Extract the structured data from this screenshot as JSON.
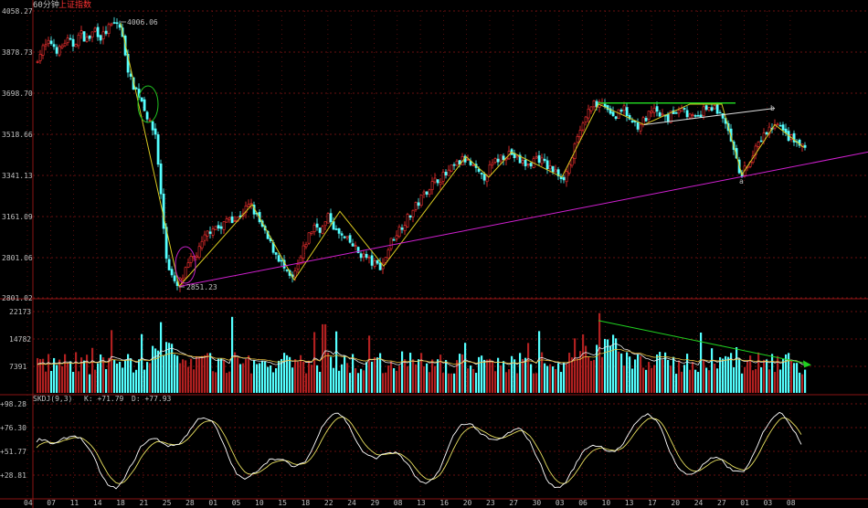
{
  "header": {
    "period": "60分钟",
    "index_name": "上证指数"
  },
  "colors": {
    "up": "#ff3232",
    "down": "#54ffff",
    "grid": "#8a1414",
    "bg": "#000000",
    "zigzag": "#d8c820",
    "support": "#d020d0",
    "channel": "#e0e0e0",
    "top_line": "#20d020",
    "volume_trend": "#20d020",
    "kdj_k": "#ffffff",
    "kdj_d": "#e8e060"
  },
  "chart_data": {
    "type": "candlestick",
    "price_axis": {
      "ticks": [
        "4058.27",
        "3878.73",
        "3698.70",
        "3518.66",
        "3341.13",
        "3161.09",
        "2801.06",
        "2801.02"
      ],
      "ylim": [
        2801.02,
        4058.27
      ]
    },
    "annotations": {
      "high_label": "4006.06",
      "low_label": "2851.23",
      "wave_a": "a",
      "wave_b": "b"
    },
    "volume_axis": {
      "ticks": [
        "22173",
        "14782",
        "7391"
      ],
      "ylim": [
        0,
        22173
      ]
    },
    "kdj": {
      "title": "SKDJ(9,3)",
      "k_label": "K: +71.79",
      "d_label": "D: +77.93",
      "ticks": [
        "+98.28",
        "+76.30",
        "+51.77",
        "+28.81"
      ]
    },
    "x_ticks": [
      "04",
      "07",
      "11",
      "14",
      "18",
      "21",
      "25",
      "28",
      "01",
      "05",
      "10",
      "15",
      "18",
      "22",
      "24",
      "29",
      "08",
      "13",
      "16",
      "20",
      "23",
      "27",
      "30",
      "03",
      "06",
      "10",
      "13",
      "17",
      "20",
      "24",
      "27",
      "01",
      "03",
      "08"
    ],
    "price_path": [
      [
        0,
        3690
      ],
      [
        8,
        3710
      ],
      [
        14,
        3650
      ],
      [
        20,
        3720
      ],
      [
        28,
        3700
      ],
      [
        34,
        3760
      ],
      [
        42,
        3850
      ],
      [
        50,
        3900
      ],
      [
        58,
        3920
      ],
      [
        66,
        3880
      ],
      [
        74,
        3930
      ],
      [
        82,
        3910
      ],
      [
        90,
        3960
      ],
      [
        98,
        3930
      ],
      [
        106,
        3980
      ],
      [
        113,
        3940
      ],
      [
        120,
        3980
      ],
      [
        126,
        4000
      ],
      [
        132,
        4006
      ],
      [
        138,
        3900
      ],
      [
        144,
        3760
      ],
      [
        150,
        3720
      ],
      [
        158,
        3660
      ],
      [
        166,
        3560
      ],
      [
        172,
        3520
      ],
      [
        176,
        3350
      ],
      [
        180,
        3150
      ],
      [
        184,
        2980
      ],
      [
        188,
        2920
      ],
      [
        193,
        2860
      ],
      [
        196,
        2851
      ],
      [
        202,
        2890
      ],
      [
        210,
        2960
      ],
      [
        220,
        3010
      ],
      [
        228,
        3080
      ],
      [
        236,
        3120
      ],
      [
        244,
        3100
      ],
      [
        252,
        3160
      ],
      [
        260,
        3140
      ],
      [
        268,
        3180
      ],
      [
        276,
        3210
      ],
      [
        284,
        3150
      ],
      [
        292,
        3080
      ],
      [
        300,
        3020
      ],
      [
        308,
        2970
      ],
      [
        316,
        2900
      ],
      [
        322,
        2880
      ],
      [
        330,
        2960
      ],
      [
        338,
        3060
      ],
      [
        346,
        3120
      ],
      [
        354,
        3100
      ],
      [
        362,
        3160
      ],
      [
        370,
        3090
      ],
      [
        378,
        3060
      ],
      [
        386,
        3040
      ],
      [
        394,
        3000
      ],
      [
        402,
        2980
      ],
      [
        410,
        2950
      ],
      [
        420,
        2940
      ],
      [
        430,
        3050
      ],
      [
        440,
        3110
      ],
      [
        450,
        3160
      ],
      [
        460,
        3220
      ],
      [
        470,
        3280
      ],
      [
        480,
        3320
      ],
      [
        490,
        3340
      ],
      [
        500,
        3380
      ],
      [
        510,
        3410
      ],
      [
        520,
        3370
      ],
      [
        530,
        3320
      ],
      [
        540,
        3380
      ],
      [
        550,
        3420
      ],
      [
        560,
        3440
      ],
      [
        570,
        3400
      ],
      [
        580,
        3380
      ],
      [
        590,
        3420
      ],
      [
        600,
        3380
      ],
      [
        610,
        3350
      ],
      [
        620,
        3330
      ],
      [
        628,
        3420
      ],
      [
        636,
        3520
      ],
      [
        644,
        3600
      ],
      [
        652,
        3650
      ],
      [
        660,
        3640
      ],
      [
        668,
        3620
      ],
      [
        676,
        3600
      ],
      [
        684,
        3630
      ],
      [
        692,
        3580
      ],
      [
        700,
        3560
      ],
      [
        708,
        3580
      ],
      [
        716,
        3620
      ],
      [
        724,
        3600
      ],
      [
        732,
        3580
      ],
      [
        740,
        3620
      ],
      [
        748,
        3640
      ],
      [
        756,
        3600
      ],
      [
        764,
        3580
      ],
      [
        772,
        3620
      ],
      [
        780,
        3640
      ],
      [
        790,
        3610
      ],
      [
        798,
        3540
      ],
      [
        806,
        3420
      ],
      [
        812,
        3341
      ],
      [
        820,
        3380
      ],
      [
        828,
        3440
      ],
      [
        836,
        3500
      ],
      [
        844,
        3540
      ],
      [
        852,
        3560
      ],
      [
        860,
        3520
      ],
      [
        868,
        3500
      ],
      [
        874,
        3480
      ],
      [
        880,
        3460
      ]
    ],
    "zigzag": [
      [
        132,
        4006
      ],
      [
        196,
        2851
      ],
      [
        276,
        3210
      ],
      [
        322,
        2880
      ],
      [
        372,
        3180
      ],
      [
        420,
        2940
      ],
      [
        510,
        3420
      ],
      [
        535,
        3330
      ],
      [
        560,
        3440
      ],
      [
        615,
        3330
      ],
      [
        655,
        3650
      ],
      [
        705,
        3560
      ],
      [
        755,
        3650
      ],
      [
        790,
        3650
      ],
      [
        812,
        3341
      ],
      [
        848,
        3560
      ],
      [
        880,
        3460
      ]
    ],
    "support_line": [
      [
        196,
        2851
      ],
      [
        950,
        3440
      ]
    ],
    "channel_top": [
      [
        705,
        3560
      ],
      [
        848,
        3560
      ]
    ],
    "top_line": [
      [
        655,
        3655
      ],
      [
        805,
        3655
      ]
    ],
    "volume_trend": [
      [
        655,
        19500
      ],
      [
        885,
        7800
      ]
    ]
  }
}
